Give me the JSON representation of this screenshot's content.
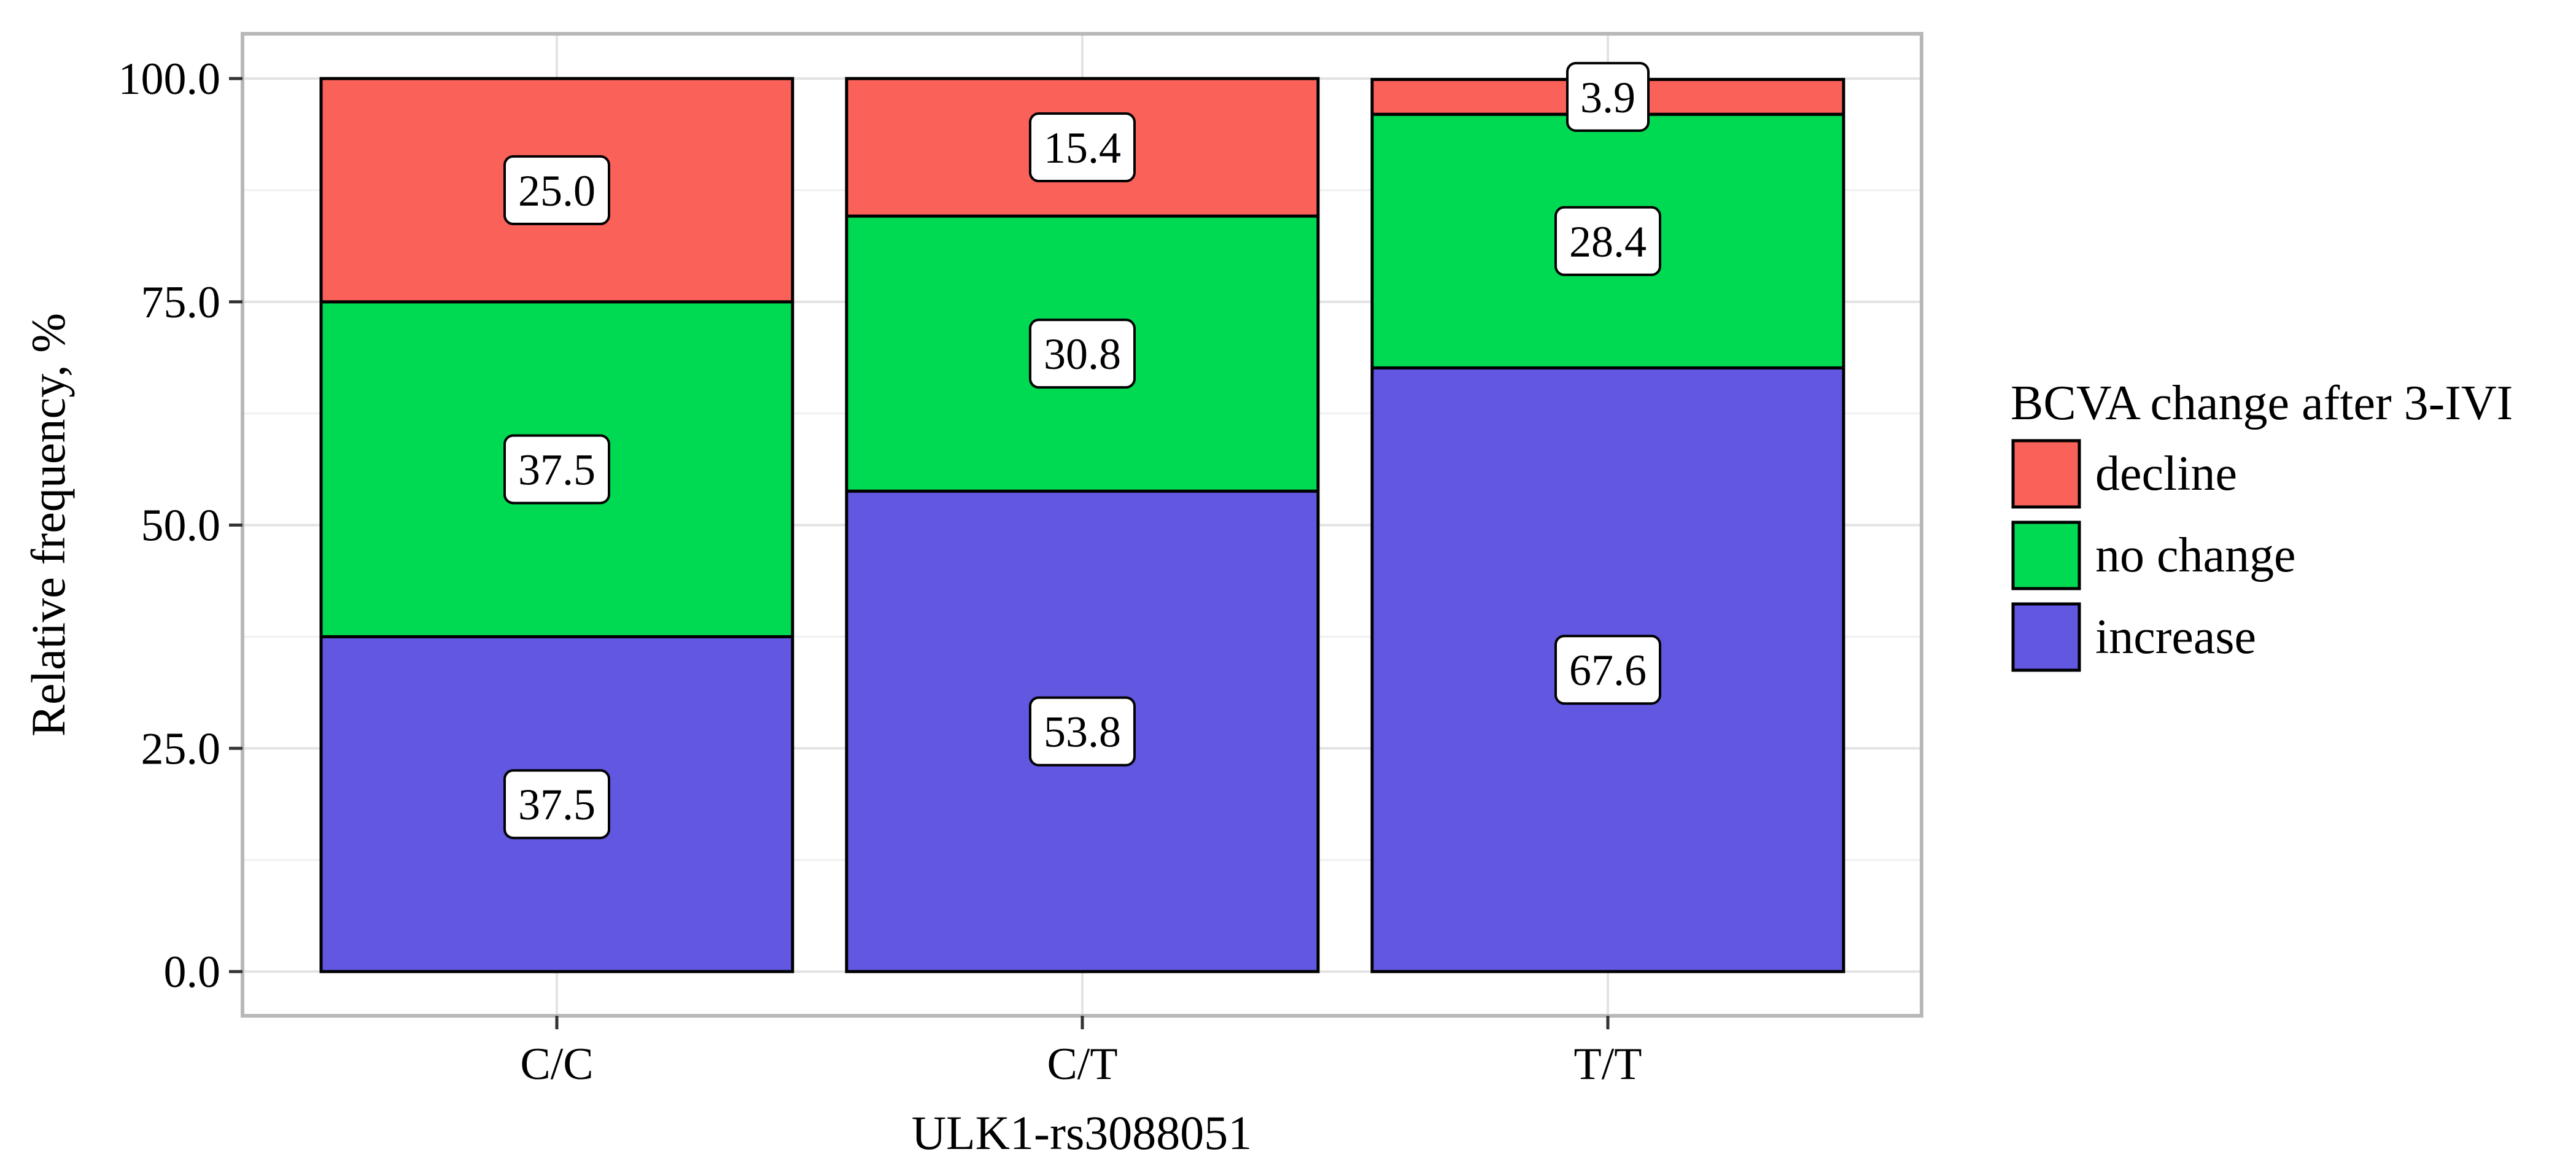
{
  "chart_data": {
    "type": "bar",
    "stacked": true,
    "categories": [
      "C/C",
      "C/T",
      "T/T"
    ],
    "series": [
      {
        "name": "increase",
        "color": "#6157e0",
        "values": [
          37.5,
          53.8,
          67.6
        ]
      },
      {
        "name": "no change",
        "color": "#00da52",
        "values": [
          37.5,
          30.8,
          28.4
        ]
      },
      {
        "name": "decline",
        "color": "#fa6159",
        "values": [
          25.0,
          15.4,
          3.9
        ]
      }
    ],
    "xlabel": "ULK1-rs3088051",
    "ylabel": "Relative frequency, %",
    "ylim": [
      -5,
      105
    ],
    "yticks": [
      "0.0",
      "25.0",
      "50.0",
      "75.0",
      "100.0"
    ],
    "grid": true,
    "legend": {
      "title": "BCVA change after 3-IVI",
      "placement": "right",
      "order": [
        "decline",
        "no change",
        "increase"
      ]
    }
  }
}
